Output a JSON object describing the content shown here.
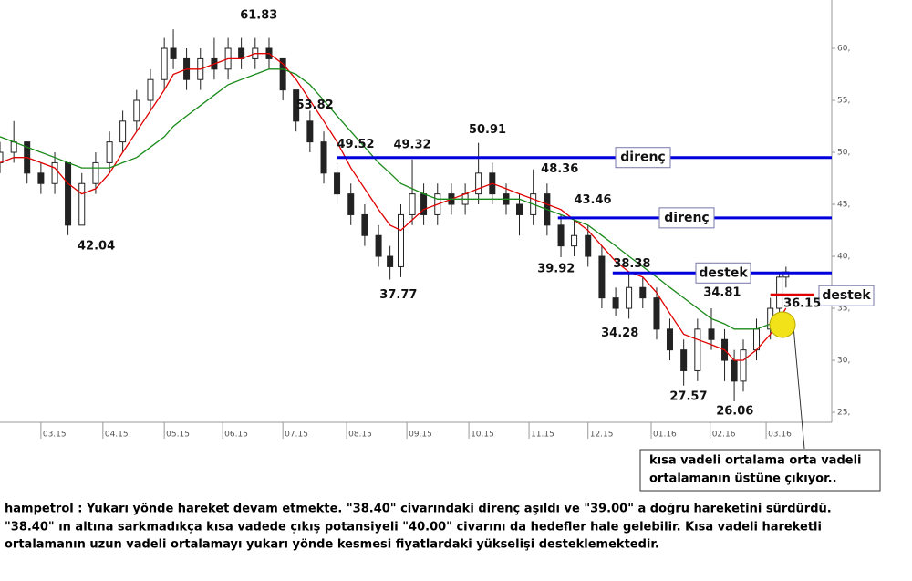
{
  "chart_data": {
    "type": "candlestick",
    "xlim": [
      -0.68,
      13.14
    ],
    "ylim": [
      24.04,
      64.65
    ],
    "xticks": [
      {
        "value": 0,
        "label": "03.15"
      },
      {
        "value": 1.03,
        "label": "04.15"
      },
      {
        "value": 2.05,
        "label": "05.15"
      },
      {
        "value": 3.02,
        "label": "06.15"
      },
      {
        "value": 4.02,
        "label": "07.15"
      },
      {
        "value": 5.08,
        "label": "08.15"
      },
      {
        "value": 6.08,
        "label": "09.15"
      },
      {
        "value": 7.11,
        "label": "10.15"
      },
      {
        "value": 8.11,
        "label": "11.15"
      },
      {
        "value": 9.09,
        "label": "12.15"
      },
      {
        "value": 10.14,
        "label": "01.16"
      },
      {
        "value": 11.12,
        "label": "02.16"
      },
      {
        "value": 12.05,
        "label": "03.16"
      }
    ],
    "yticks": [
      {
        "value": 25,
        "label": "25,"
      },
      {
        "value": 30,
        "label": "30,"
      },
      {
        "value": 35,
        "label": "35,"
      },
      {
        "value": 40,
        "label": "40,"
      },
      {
        "value": 45,
        "label": "45,"
      },
      {
        "value": 50,
        "label": "50,"
      },
      {
        "value": 55,
        "label": "55,"
      },
      {
        "value": 60,
        "label": "60,"
      }
    ],
    "x": [
      -0.68,
      -0.45,
      -0.23,
      0,
      0.23,
      0.45,
      0.68,
      0.91,
      1.14,
      1.36,
      1.59,
      1.82,
      2.05,
      2.2,
      2.42,
      2.65,
      2.88,
      3.11,
      3.33,
      3.56,
      3.79,
      4.02,
      4.24,
      4.47,
      4.7,
      4.92,
      5.15,
      5.38,
      5.61,
      5.8,
      5.98,
      6.17,
      6.36,
      6.59,
      6.82,
      7.05,
      7.27,
      7.5,
      7.73,
      7.95,
      8.18,
      8.41,
      8.64,
      8.86,
      9.09,
      9.32,
      9.55,
      9.77,
      10,
      10.23,
      10.45,
      10.68,
      10.91,
      11.14,
      11.36,
      11.52,
      11.67,
      11.89,
      12.12,
      12.27,
      12.38
    ],
    "open": [
      49,
      50,
      51,
      48,
      47,
      49,
      43,
      47,
      49,
      51,
      53,
      55,
      57,
      60,
      59,
      57,
      59,
      58,
      60,
      59,
      60,
      59,
      56,
      53,
      51,
      48,
      46,
      44,
      42,
      40,
      39,
      44,
      46,
      44,
      46,
      45,
      46,
      48,
      46,
      45,
      44,
      46,
      43,
      41,
      42,
      40,
      36,
      35,
      37,
      36,
      33,
      31,
      29,
      33,
      32,
      30,
      28,
      31,
      33,
      35,
      38
    ],
    "high": [
      51,
      53,
      51,
      49,
      50,
      49,
      48,
      50,
      52,
      54,
      56,
      58,
      61,
      61.83,
      60,
      60,
      61,
      61,
      61,
      61,
      61,
      59,
      56,
      54,
      52,
      49,
      47,
      45,
      43,
      41,
      45,
      49.32,
      47,
      47,
      47,
      47,
      50.91,
      49,
      47,
      46,
      48.36,
      47,
      44,
      43.46,
      43,
      41,
      37,
      38.38,
      38,
      37,
      34,
      32,
      34,
      35,
      33,
      31,
      32,
      34,
      36,
      38.5,
      39
    ],
    "low": [
      48,
      49,
      47,
      46,
      46,
      42.04,
      43,
      46,
      48,
      50,
      52,
      54,
      56,
      58,
      56,
      56,
      57,
      57,
      58,
      58,
      58,
      55,
      52,
      50,
      47,
      45,
      43,
      41,
      39,
      37.77,
      38,
      43,
      43,
      43,
      44,
      44,
      45,
      45,
      44,
      42,
      43,
      42,
      39.92,
      40,
      39,
      35,
      34.28,
      34,
      35,
      32,
      30,
      27.57,
      28,
      31,
      28,
      26.06,
      27,
      30,
      32,
      34,
      37
    ],
    "close": [
      50,
      51,
      48,
      47,
      49,
      43,
      47,
      49,
      51,
      53,
      55,
      57,
      60,
      59,
      57,
      59,
      58,
      60,
      59,
      60,
      59,
      56,
      53,
      51,
      48,
      46,
      44,
      42,
      40,
      39,
      44,
      46,
      44,
      46,
      45,
      46,
      48,
      46,
      45,
      44,
      46,
      43,
      41,
      42,
      40,
      36,
      35,
      37,
      36,
      33,
      31,
      29,
      33,
      32,
      30,
      28,
      31,
      33,
      35,
      38,
      38.5
    ],
    "lines": [
      {
        "color": "#e00000",
        "values": [
          49,
          49.5,
          49.5,
          49,
          48.5,
          47,
          46,
          46.5,
          48,
          50,
          52,
          54,
          56,
          57.5,
          58,
          58,
          58.5,
          59,
          59,
          59.5,
          59.5,
          58.5,
          57,
          55,
          53,
          51,
          48.5,
          46.5,
          44.5,
          43,
          42.5,
          43.5,
          44.5,
          45,
          45.5,
          46,
          46.5,
          47,
          46.5,
          46,
          45.5,
          45,
          44.5,
          43.5,
          42.5,
          41,
          39.5,
          38.5,
          38,
          36.5,
          34.5,
          32.5,
          32,
          31.5,
          31,
          30,
          30,
          31,
          32.5,
          34,
          35
        ]
      },
      {
        "color": "#1a8a1a",
        "values": [
          51.5,
          51,
          50.5,
          50,
          49.5,
          49,
          48.5,
          48.5,
          48.5,
          49,
          49.5,
          50.5,
          51.5,
          52.5,
          53.5,
          54.5,
          55.5,
          56.5,
          57,
          57.5,
          58,
          58,
          57.5,
          56.5,
          55,
          53.5,
          52,
          50.5,
          49,
          48,
          47,
          46.5,
          46,
          45.5,
          45.5,
          45.5,
          45.5,
          45.5,
          45.5,
          45.5,
          45,
          44.5,
          44,
          43.5,
          43,
          42,
          41,
          40,
          39,
          38,
          37,
          36,
          35,
          34,
          33.5,
          33,
          33,
          33,
          33.5,
          34,
          34.5
        ]
      }
    ],
    "annotations": [
      {
        "x": 3.62,
        "value": 61.83
      },
      {
        "x": 4.55,
        "value": 53.82
      },
      {
        "x": 5.23,
        "value": 49.52
      },
      {
        "x": 6.17,
        "value": 49.32
      },
      {
        "x": 7.42,
        "value": 50.91
      },
      {
        "x": 8.62,
        "value": 48.36
      },
      {
        "x": 9.17,
        "value": 43.46
      },
      {
        "x": 0.92,
        "value": 42.04
      },
      {
        "x": 5.94,
        "value": 37.77
      },
      {
        "x": 8.56,
        "value": 39.92
      },
      {
        "x": 9.82,
        "value": 38.38
      },
      {
        "x": 9.62,
        "value": 34.28
      },
      {
        "x": 11.32,
        "value": 34.81
      },
      {
        "x": 12.65,
        "value": 36.15
      },
      {
        "x": 10.76,
        "value": 27.57
      },
      {
        "x": 11.53,
        "value": 26.06
      }
    ],
    "levels": [
      {
        "label": "direnç",
        "value": 49.5,
        "x_start": 4.92,
        "x_end": 13.14,
        "color": "#0000dd"
      },
      {
        "label": "direnç",
        "value": 43.7,
        "x_start": 8.59,
        "x_end": 13.14,
        "color": "#0000dd"
      },
      {
        "label": "destek",
        "value": 38.4,
        "x_start": 9.5,
        "x_end": 13.14,
        "color": "#0000dd"
      },
      {
        "label": "destek",
        "value": 36.3,
        "x_start": 12.12,
        "x_end": 12.85,
        "color": "#e00000"
      }
    ],
    "callout": [
      "kısa vadeli ortalama orta vadeli",
      "ortalamanın üstüne çıkıyor.."
    ]
  },
  "commentary": [
    "hampetrol : Yukarı yönde hareket devam etmekte. \"38.40\" civarındaki direnç aşıldı ve \"39.00\" a doğru hareketini sürdürdü.",
    "\"38.40\" ın altına sarkmadıkça kısa vadede çıkış potansiyeli \"40.00\" civarını da hedefler hale gelebilir. Kısa vadeli hareketli",
    "ortalamanın uzun vadeli ortalamayı yukarı yönde kesmesi fiyatlardaki yükselişi desteklemektedir."
  ]
}
